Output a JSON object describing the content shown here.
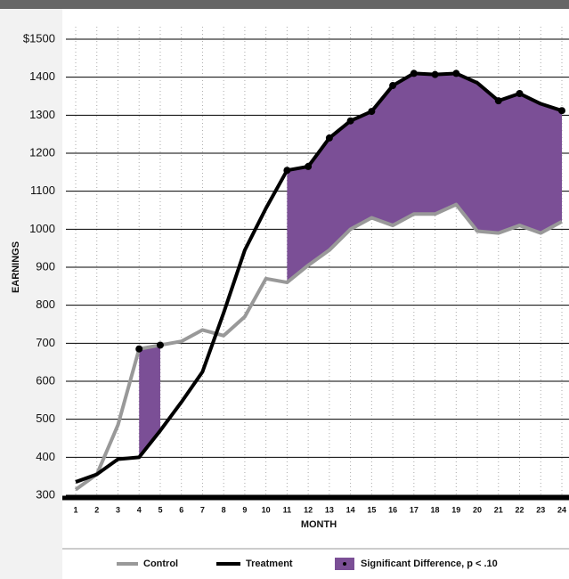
{
  "chart_data": {
    "type": "line",
    "xlabel": "MONTH",
    "ylabel": "EARNINGS",
    "categories": [
      "1",
      "2",
      "3",
      "4",
      "5",
      "6",
      "7",
      "8",
      "9",
      "10",
      "11",
      "12",
      "13",
      "14",
      "15",
      "16",
      "17",
      "18",
      "19",
      "20",
      "21",
      "22",
      "23",
      "24"
    ],
    "series": [
      {
        "name": "Control",
        "color": "#999999",
        "values": [
          315,
          355,
          485,
          685,
          695,
          705,
          735,
          720,
          770,
          870,
          860,
          905,
          945,
          1000,
          1030,
          1010,
          1040,
          1040,
          1065,
          995,
          990,
          1010,
          990,
          1020
        ]
      },
      {
        "name": "Treatment",
        "color": "#000000",
        "values": [
          335,
          355,
          395,
          400,
          470,
          545,
          625,
          780,
          945,
          1055,
          1155,
          1165,
          1240,
          1285,
          1310,
          1378,
          1410,
          1407,
          1410,
          1385,
          1338,
          1357,
          1330,
          1312
        ]
      }
    ],
    "significance": {
      "name": "Significant Difference, p < .10",
      "color": "#7b4f96",
      "ranges": [
        [
          4,
          5
        ],
        [
          11,
          24
        ]
      ],
      "control_points": [
        4,
        5
      ],
      "treatment_points": [
        11,
        12,
        13,
        14,
        15,
        16,
        17,
        18,
        19,
        21,
        22,
        24
      ]
    },
    "ylim": [
      300,
      1500
    ],
    "yticks": [
      300,
      400,
      500,
      600,
      700,
      800,
      900,
      1000,
      1100,
      1200,
      1300,
      1400,
      {
        "value": 1500,
        "label": "$1500"
      }
    ],
    "grid": true
  }
}
